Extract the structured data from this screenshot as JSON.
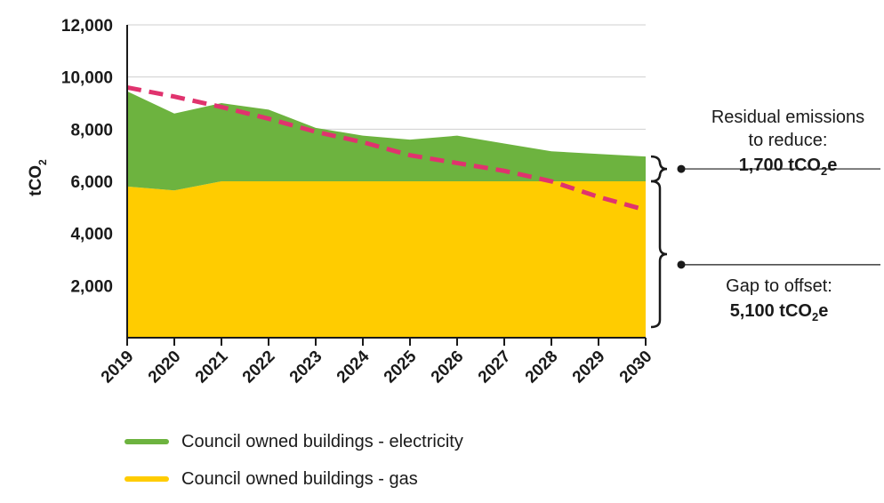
{
  "chart_data": {
    "type": "area",
    "title": "",
    "xlabel": "",
    "ylabel": "tCO",
    "ylabel_sub": "2",
    "x": [
      "2019",
      "2020",
      "2021",
      "2022",
      "2023",
      "2024",
      "2025",
      "2026",
      "2027",
      "2028",
      "2029",
      "2030"
    ],
    "ylim": [
      0,
      12000
    ],
    "yticks": [
      {
        "value": 2000,
        "label": "2,000"
      },
      {
        "value": 4000,
        "label": "4,000"
      },
      {
        "value": 6000,
        "label": "6,000"
      },
      {
        "value": 8000,
        "label": "8,000"
      },
      {
        "value": 10000,
        "label": "10,000"
      },
      {
        "value": 12000,
        "label": "12,000"
      }
    ],
    "grid": true,
    "series": [
      {
        "name": "Council owned buildings - gas",
        "color": "#FFCC00",
        "stacked": true,
        "values": [
          5800,
          5650,
          6000,
          6000,
          6000,
          6000,
          6000,
          6000,
          6000,
          6000,
          6000,
          6000
        ]
      },
      {
        "name": "Council owned buildings - electricity",
        "color": "#6DB33F",
        "stacked": true,
        "values": [
          3650,
          2950,
          3000,
          2750,
          2050,
          1750,
          1600,
          1750,
          1450,
          1150,
          1050,
          950
        ]
      }
    ],
    "target_line": {
      "color": "#E0336E",
      "style": "dashed",
      "values": [
        9600,
        9250,
        8850,
        8400,
        7900,
        7500,
        7000,
        6700,
        6400,
        6000,
        5400,
        4900
      ]
    },
    "annotations": [
      {
        "lines": [
          {
            "text": "Residual emissions"
          },
          {
            "text": "to reduce:"
          }
        ],
        "value_main": "1,700 tCO",
        "value_sub": "2",
        "value_tail": "e"
      },
      {
        "lines": [
          {
            "text": "Gap to offset:"
          }
        ],
        "value_main": "5,100 tCO",
        "value_sub": "2",
        "value_tail": "e"
      }
    ],
    "legend_position": "bottom-left",
    "legend": [
      {
        "label": "Council owned buildings - electricity",
        "color": "#6DB33F"
      },
      {
        "label": "Council owned buildings - gas",
        "color": "#FFCC00"
      }
    ]
  }
}
